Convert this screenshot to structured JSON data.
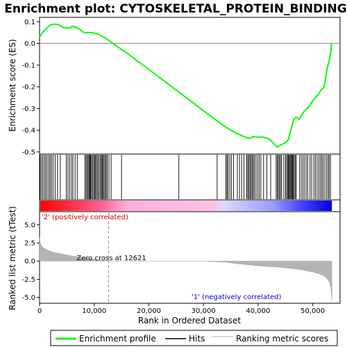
{
  "chart_data": {
    "type": "line",
    "title": "Enrichment plot: CYTOSKELETAL_PROTEIN_BINDING",
    "xlabel": "Rank in Ordered Dataset",
    "xlim": [
      0,
      55000
    ],
    "x_ticks": [
      0,
      10000,
      20000,
      30000,
      40000,
      50000
    ],
    "x_tick_labels": [
      "0",
      "10,000",
      "20,000",
      "30,000",
      "40,000",
      "50,000"
    ],
    "top_panel": {
      "ylabel": "Enrichment score (ES)",
      "ylim": [
        -0.51,
        0.12
      ],
      "y_ticks": [
        0.1,
        0.0,
        -0.1,
        -0.2,
        -0.3,
        -0.4,
        -0.5
      ],
      "y_tick_labels": [
        "0.1",
        "0.0",
        "-0.1",
        "-0.2",
        "-0.3",
        "-0.4",
        "-0.5"
      ],
      "series": [
        {
          "name": "Enrichment profile",
          "color": "#00ff00",
          "x": [
            0,
            300,
            700,
            1200,
            1600,
            2000,
            2500,
            3000,
            3500,
            4000,
            4500,
            5000,
            5500,
            6000,
            6500,
            7000,
            7500,
            8000,
            8500,
            9000,
            9500,
            10000,
            10500,
            11000,
            12000,
            13000,
            14000,
            16000,
            18000,
            20000,
            22000,
            24000,
            26000,
            28000,
            30000,
            32000,
            33000,
            34000,
            35000,
            36000,
            37000,
            38000,
            38500,
            39000,
            40000,
            41000,
            42000,
            43000,
            43500,
            44000,
            45000,
            45500,
            46000,
            46500,
            47000,
            47500,
            48000,
            48500,
            49000,
            49500,
            50000,
            50500,
            51000,
            51500,
            52000,
            52300,
            52600,
            52900,
            53100,
            53300,
            53450
          ],
          "y": [
            0.03,
            0.04,
            0.055,
            0.068,
            0.078,
            0.085,
            0.088,
            0.089,
            0.085,
            0.078,
            0.072,
            0.072,
            0.07,
            0.078,
            0.075,
            0.07,
            0.062,
            0.052,
            0.048,
            0.05,
            0.05,
            0.047,
            0.044,
            0.038,
            0.026,
            0.008,
            -0.01,
            -0.045,
            -0.083,
            -0.12,
            -0.158,
            -0.196,
            -0.234,
            -0.272,
            -0.31,
            -0.348,
            -0.367,
            -0.385,
            -0.4,
            -0.413,
            -0.425,
            -0.435,
            -0.438,
            -0.43,
            -0.432,
            -0.432,
            -0.44,
            -0.465,
            -0.478,
            -0.47,
            -0.458,
            -0.445,
            -0.4,
            -0.35,
            -0.34,
            -0.35,
            -0.33,
            -0.31,
            -0.3,
            -0.285,
            -0.265,
            -0.25,
            -0.235,
            -0.215,
            -0.205,
            -0.17,
            -0.12,
            -0.09,
            -0.07,
            -0.04,
            0.003
          ]
        }
      ]
    },
    "hits": [
      120,
      380,
      620,
      900,
      1150,
      1400,
      1700,
      1950,
      2200,
      2500,
      2850,
      3300,
      3800,
      4900,
      5200,
      5500,
      5850,
      6100,
      6500,
      6900,
      8300,
      8500,
      8700,
      8900,
      9050,
      9200,
      9350,
      9500,
      9700,
      9900,
      10100,
      10250,
      10450,
      10650,
      10850,
      11100,
      11300,
      11450,
      11600,
      11800,
      12000,
      12200,
      12400,
      12700,
      13100,
      15000,
      25500,
      32500,
      34100,
      34300,
      34500,
      34800,
      35100,
      35500,
      36200,
      36600,
      37000,
      37400,
      37900,
      38100,
      38300,
      38500,
      38700,
      38900,
      39100,
      39300,
      39600,
      39900,
      40200,
      40500,
      41000,
      41600,
      42300,
      43300,
      43500,
      43700,
      43900,
      44100,
      44300,
      44700,
      45000,
      45200,
      45400,
      45550,
      45700,
      45850,
      46000,
      46150,
      46300,
      46450,
      46600,
      46800,
      47000,
      47600,
      47900,
      48200,
      48500,
      48800,
      49100,
      49500,
      49800,
      50200,
      50500,
      50800,
      51100,
      51400,
      51650,
      51900,
      52200,
      52500,
      52800,
      53000,
      53250
    ],
    "bottom_panel": {
      "ylabel": "Ranked list metric (tTest)",
      "ylim": [
        -5.8,
        6.8
      ],
      "y_ticks": [
        5.0,
        2.5,
        0.0,
        -2.5,
        -5.0
      ],
      "y_tick_labels": [
        "5.0",
        "2.5",
        "0.0",
        "-2.5",
        "-5.0"
      ],
      "metric_x": [
        0,
        100,
        300,
        600,
        1000,
        1500,
        2000,
        3000,
        4000,
        5000,
        6000,
        7000,
        8000,
        9000,
        10000,
        11000,
        12000,
        12621,
        13000,
        20000,
        30000,
        34000,
        36000,
        38000,
        40000,
        42000,
        44000,
        46000,
        48000,
        50000,
        51000,
        52000,
        52500,
        53000,
        53300,
        53500
      ],
      "metric_y": [
        3.3,
        2.6,
        2.2,
        1.9,
        1.7,
        1.5,
        1.35,
        1.15,
        1.0,
        0.85,
        0.7,
        0.58,
        0.45,
        0.35,
        0.25,
        0.15,
        0.06,
        0.0,
        0.0,
        0.0,
        0.0,
        -0.15,
        -0.35,
        -0.5,
        -0.65,
        -0.75,
        -0.85,
        -1.0,
        -1.2,
        -1.5,
        -1.7,
        -2.0,
        -2.3,
        -2.8,
        -3.6,
        -5.5
      ],
      "zero_cross": 12621,
      "zero_cross_label": "Zero cross at 12621",
      "pos_label": "'2' (positively correlated)",
      "neg_label": "'1' (negatively correlated)"
    },
    "legend": {
      "placement": "bottom",
      "entries": [
        "Enrichment profile",
        "Hits",
        "Ranking metric scores"
      ]
    },
    "grid": false
  },
  "colors": {
    "profile": "#00ff00",
    "hits": "#000000",
    "metric": "#b4b4b4",
    "pos_text": "#cc0000",
    "neg_text": "#0000cc"
  }
}
